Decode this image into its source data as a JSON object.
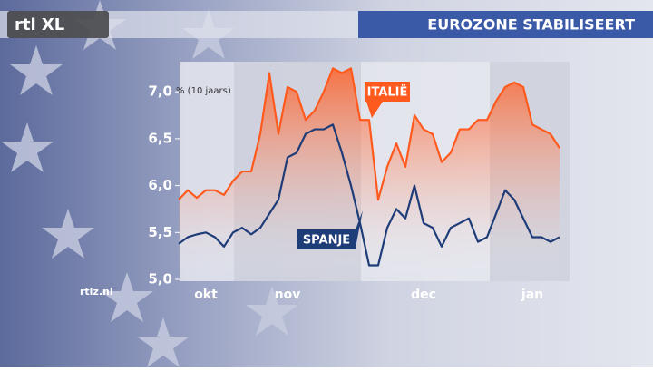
{
  "logo": "rtl XL",
  "title": "EUROZONE STABILISEERT",
  "source": "rtlz.nl",
  "chart_data": {
    "type": "line",
    "y_unit_label": "% (10 jaars)",
    "categories": [
      null,
      null,
      null,
      "okt",
      null,
      null,
      null,
      null,
      null,
      null,
      null,
      null,
      "nov",
      null,
      null,
      null,
      null,
      null,
      null,
      null,
      null,
      null,
      null,
      null,
      null,
      null,
      null,
      "dec",
      null,
      null,
      null,
      null,
      null,
      null,
      null,
      null,
      null,
      null,
      null,
      "jan",
      null,
      null,
      null
    ],
    "series": [
      {
        "name": "ITALIË",
        "color": "#ff5a1e",
        "values": [
          5.85,
          5.95,
          5.87,
          5.95,
          5.95,
          5.9,
          6.05,
          6.15,
          6.15,
          6.55,
          7.2,
          6.55,
          7.05,
          7.0,
          6.7,
          6.8,
          7.0,
          7.25,
          7.2,
          7.25,
          6.7,
          6.7,
          5.85,
          6.2,
          6.45,
          6.2,
          6.75,
          6.6,
          6.55,
          6.25,
          6.35,
          6.6,
          6.6,
          6.7,
          6.7,
          6.9,
          7.05,
          7.1,
          7.05,
          6.65,
          6.6,
          6.55,
          6.4
        ]
      },
      {
        "name": "SPANJE",
        "color": "#1e3c78",
        "values": [
          5.38,
          5.45,
          5.48,
          5.5,
          5.45,
          5.35,
          5.5,
          5.55,
          5.48,
          5.55,
          5.7,
          5.85,
          6.3,
          6.35,
          6.55,
          6.6,
          6.6,
          6.65,
          6.35,
          6.0,
          5.6,
          5.15,
          5.15,
          5.55,
          5.75,
          5.65,
          6.0,
          5.6,
          5.55,
          5.35,
          5.55,
          5.6,
          5.65,
          5.4,
          5.45,
          5.7,
          5.95,
          5.85,
          5.65,
          5.45,
          5.45,
          5.4,
          5.45
        ]
      }
    ],
    "ylim": [
      5.0,
      7.35
    ],
    "yticks": [
      {
        "value": 5.0,
        "label": "5,0"
      },
      {
        "value": 5.5,
        "label": "5,5"
      },
      {
        "value": 6.0,
        "label": "6,0"
      },
      {
        "value": 6.5,
        "label": "6,5"
      },
      {
        "value": 7.0,
        "label": "7,0"
      }
    ]
  }
}
